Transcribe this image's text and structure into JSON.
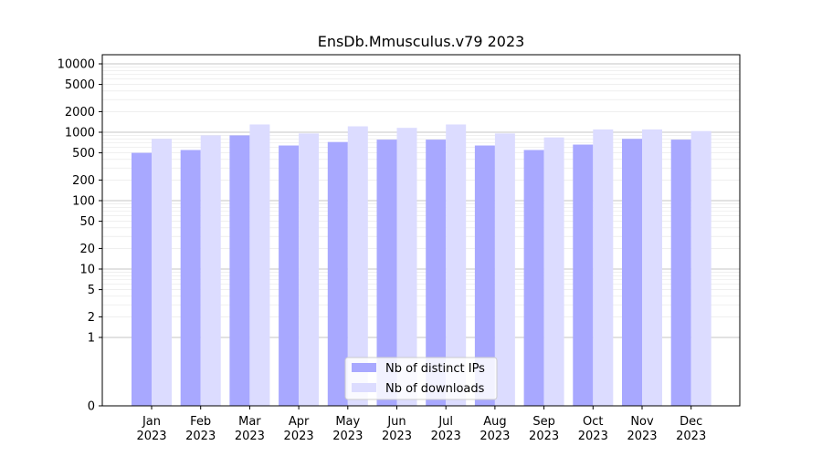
{
  "chart_data": {
    "type": "bar",
    "title": "EnsDb.Mmusculus.v79 2023",
    "xlabel": "",
    "ylabel": "",
    "y_scale": "symlog",
    "y_ticks": [
      0,
      1,
      2,
      5,
      10,
      20,
      50,
      100,
      200,
      500,
      1000,
      2000,
      5000,
      10000
    ],
    "ylim": [
      0,
      14000
    ],
    "grid": true,
    "legend_position": "lower-center",
    "categories": [
      "Jan\n2023",
      "Feb\n2023",
      "Mar\n2023",
      "Apr\n2023",
      "May\n2023",
      "Jun\n2023",
      "Jul\n2023",
      "Aug\n2023",
      "Sep\n2023",
      "Oct\n2023",
      "Nov\n2023",
      "Dec\n2023"
    ],
    "series": [
      {
        "name": "Nb of distinct IPs",
        "color": "#a8a8ff",
        "values": [
          500,
          550,
          900,
          640,
          720,
          780,
          780,
          640,
          550,
          660,
          800,
          780
        ]
      },
      {
        "name": "Nb of downloads",
        "color": "#dcdcff",
        "values": [
          800,
          900,
          1300,
          960,
          1220,
          1160,
          1300,
          960,
          840,
          1100,
          1100,
          1040
        ]
      }
    ]
  }
}
